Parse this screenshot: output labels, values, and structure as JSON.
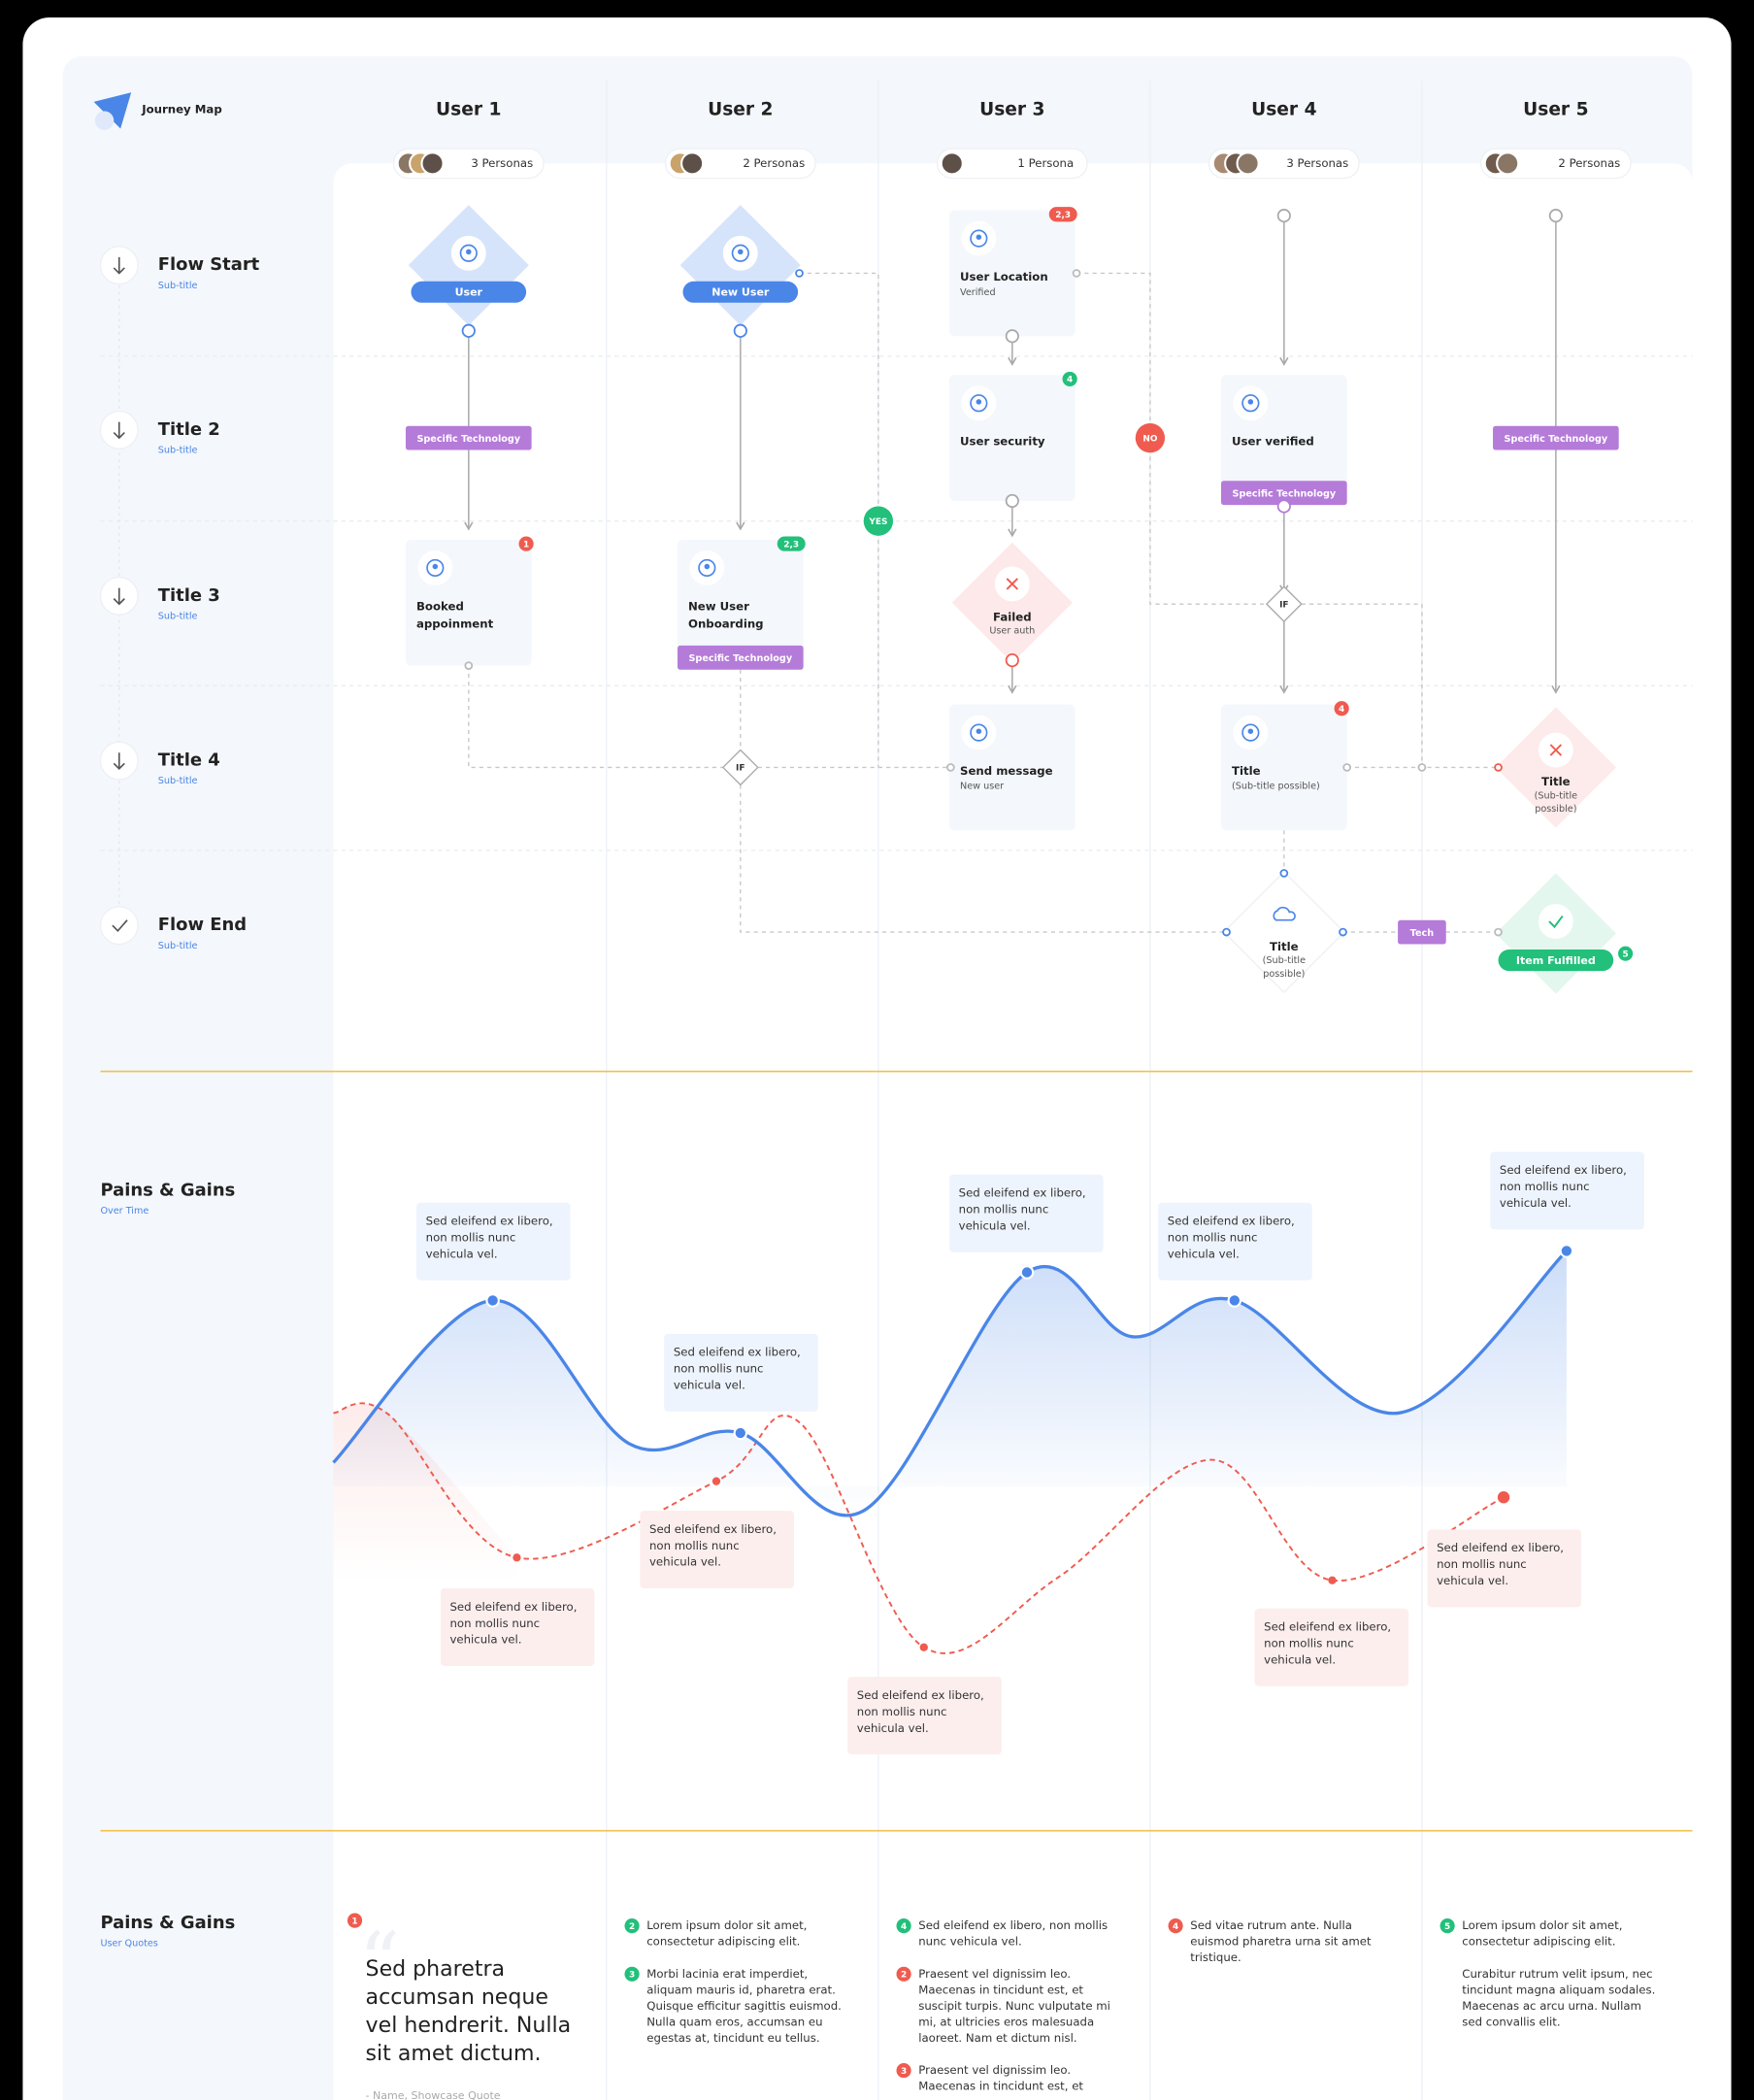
{
  "header": {
    "logo": "Journey Map"
  },
  "users": [
    {
      "name": "User 1",
      "personas": "3 Personas"
    },
    {
      "name": "User 2",
      "personas": "2 Personas"
    },
    {
      "name": "User 3",
      "personas": "1 Persona"
    },
    {
      "name": "User 4",
      "personas": "3 Personas"
    },
    {
      "name": "User 5",
      "personas": "2 Personas"
    }
  ],
  "rows": [
    {
      "title": "Flow Start",
      "subtitle": "Sub-title"
    },
    {
      "title": "Title 2",
      "subtitle": "Sub-title"
    },
    {
      "title": "Title 3",
      "subtitle": "Sub-title"
    },
    {
      "title": "Title 4",
      "subtitle": "Sub-title"
    },
    {
      "title": "Flow End",
      "subtitle": "Sub-title"
    }
  ],
  "nodes": [
    {
      "lines": [
        "User"
      ]
    },
    {
      "lines": [
        "New User"
      ]
    },
    {
      "lines": [
        "User Location"
      ],
      "sub": [
        "Verified"
      ],
      "badge": "2,3",
      "badge_color": "#ef5b4f"
    },
    {
      "lines": [
        "User security"
      ],
      "badge": "4",
      "badge_color": "#22c07a"
    },
    {
      "lines": [
        "User verified"
      ],
      "tag": "Specific Technology"
    },
    {
      "lines": [
        "Booked",
        "appoinment"
      ],
      "badge": "1",
      "badge_color": "#ef5b4f"
    },
    {
      "lines": [
        "New User",
        "Onboarding"
      ],
      "badge": "2,3",
      "badge_color": "#22c07a",
      "tag": "Specific Technology"
    },
    {
      "lines": [
        "Failed"
      ],
      "sub": [
        "User auth"
      ]
    },
    {
      "lines": [
        "Send message"
      ],
      "sub": [
        "New user"
      ]
    },
    {
      "lines": [
        "Title"
      ],
      "sub": [
        "(Sub-title possible)"
      ],
      "badge": "4",
      "badge_color": "#ef5b4f"
    },
    {
      "lines": [
        "Title"
      ],
      "sub": [
        "(Sub-title",
        "possible)"
      ]
    },
    {
      "lines": [
        "Title"
      ],
      "sub": [
        "(Sub-title",
        "possible)"
      ]
    },
    {
      "lines": [
        "Item Fulfilled"
      ],
      "badge": "5",
      "badge_color": "#22c07a"
    }
  ],
  "tags": [
    "Specific Technology",
    "Specific Technology",
    "Tech"
  ],
  "decisions": [
    "IF",
    "IF"
  ],
  "branches": {
    "yes": "YES",
    "no": "NO"
  },
  "pains_gains": {
    "title": "Pains & Gains",
    "subtitle": "Over Time",
    "gains": [
      [
        "Sed eleifend ex libero,",
        "non mollis nunc",
        "vehicula vel."
      ],
      [
        "Sed eleifend ex libero,",
        "non mollis nunc",
        "vehicula vel."
      ],
      [
        "Sed eleifend ex libero,",
        "non mollis nunc",
        "vehicula vel."
      ],
      [
        "Sed eleifend ex libero,",
        "non mollis nunc",
        "vehicula vel."
      ],
      [
        "Sed eleifend ex libero,",
        "non mollis nunc",
        "vehicula vel."
      ]
    ],
    "pains": [
      [
        "Sed eleifend ex libero,",
        "non mollis nunc",
        "vehicula vel."
      ],
      [
        "Sed eleifend ex libero,",
        "non mollis nunc",
        "vehicula vel."
      ],
      [
        "Sed eleifend ex libero,",
        "non mollis nunc",
        "vehicula vel."
      ],
      [
        "Sed eleifend ex libero,",
        "non mollis nunc",
        "vehicula vel."
      ],
      [
        "Sed eleifend ex libero,",
        "non mollis nunc",
        "vehicula vel."
      ]
    ]
  },
  "quotes": {
    "title": "Pains & Gains",
    "subtitle": "User Quotes",
    "quote": {
      "badge": "1",
      "badge_color": "#ef5b4f",
      "lines": [
        "Sed pharetra",
        "accumsan neque",
        "vel hendrerit. Nulla",
        "sit amet dictum."
      ],
      "author": "- Name, Showcase Quote"
    },
    "columns": [
      [
        {
          "badge": "2",
          "color": "#22c07a",
          "lines": [
            "Lorem ipsum dolor sit amet,",
            "consectetur adipiscing elit."
          ]
        },
        {
          "badge": "3",
          "color": "#22c07a",
          "lines": [
            "Morbi lacinia erat imperdiet,",
            "aliquam mauris id, pharetra erat.",
            "Quisque efficitur sagittis euismod.",
            "Nulla quam eros, accumsan eu",
            "egestas at, tincidunt eu tellus."
          ]
        }
      ],
      [
        {
          "badge": "4",
          "color": "#22c07a",
          "lines": [
            "Sed eleifend ex libero, non mollis",
            "nunc vehicula vel."
          ]
        },
        {
          "badge": "2",
          "color": "#ef5b4f",
          "lines": [
            "Praesent vel dignissim leo.",
            "Maecenas in tincidunt est, et",
            "suscipit turpis. Nunc vulputate mi",
            "mi, at ultricies eros malesuada",
            "laoreet. Nam et dictum nisl."
          ]
        },
        {
          "badge": "3",
          "color": "#ef5b4f",
          "lines": [
            "Praesent vel dignissim leo.",
            "Maecenas in tincidunt est, et"
          ]
        }
      ],
      [
        {
          "badge": "4",
          "color": "#ef5b4f",
          "lines": [
            "Sed vitae rutrum ante. Nulla",
            "euismod pharetra urna sit amet",
            "tristique."
          ]
        }
      ],
      [
        {
          "badge": "5",
          "color": "#22c07a",
          "lines": [
            "Lorem ipsum dolor sit amet,",
            "consectetur adipiscing elit."
          ]
        },
        {
          "lines": [
            "Curabitur rutrum velit ipsum, nec",
            "tincidunt magna aliquam sodales.",
            "Maecenas ac arcu urna. Nullam",
            "sed convallis elit."
          ]
        }
      ]
    ]
  }
}
